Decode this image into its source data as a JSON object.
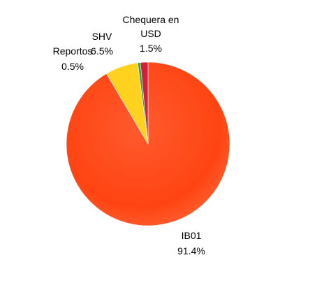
{
  "chart_data": {
    "type": "pie",
    "slices": [
      {
        "label": "IB01",
        "value": 91.4,
        "value_text": "91.4%",
        "color": "#ff4a12"
      },
      {
        "label": "SHV",
        "value": 6.5,
        "value_text": "6.5%",
        "color": "#ffd21f"
      },
      {
        "label": "Reportos",
        "value": 0.5,
        "value_text": "0.5%",
        "color": "#2f9a4e"
      },
      {
        "label": "Chequera en USD",
        "value": 1.5,
        "value_text": "1.5%",
        "color": "#d3203a"
      }
    ],
    "legend": "none",
    "data_labels": "outside"
  }
}
